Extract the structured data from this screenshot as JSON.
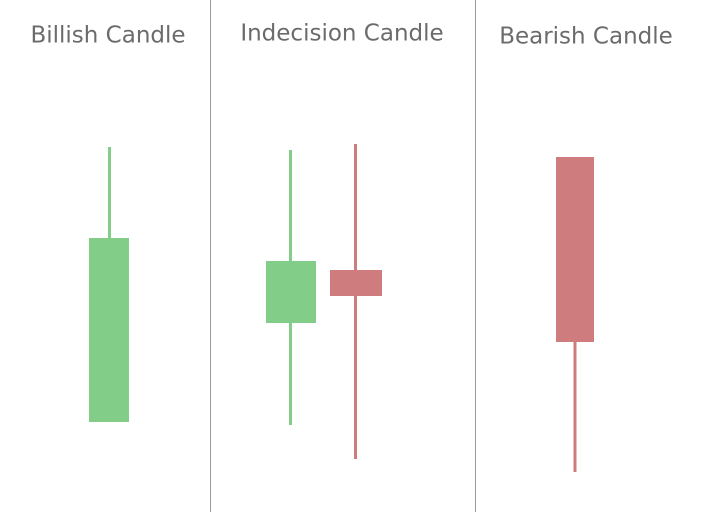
{
  "panels": [
    {
      "title": "Billish Candle"
    },
    {
      "title": "Indecision Candle"
    },
    {
      "title": "Bearish Candle"
    }
  ]
}
